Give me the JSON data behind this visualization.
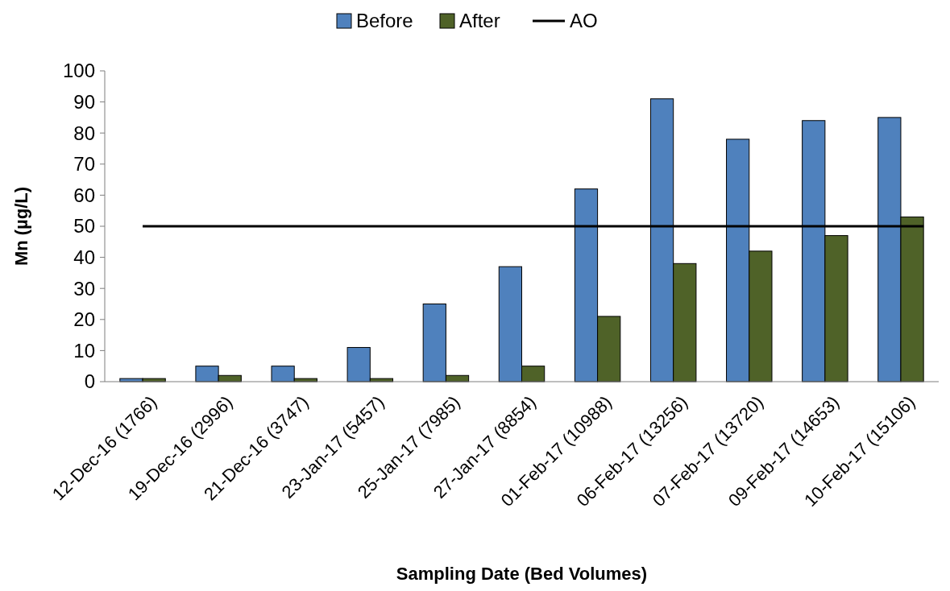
{
  "chart_data": {
    "type": "bar",
    "xlabel": "Sampling Date (Bed Volumes)",
    "ylabel": "Mn (µg/L)",
    "categories": [
      "12-Dec-16 (1766)",
      "19-Dec-16 (2996)",
      "21-Dec-16 (3747)",
      "23-Jan-17 (5457)",
      "25-Jan-17 (7985)",
      "27-Jan-17 (8854)",
      "01-Feb-17 (10988)",
      "06-Feb-17 (13256)",
      "07-Feb-17 (13720)",
      "09-Feb-17 (14653)",
      "10-Feb-17 (15106)"
    ],
    "series": [
      {
        "name": "Before",
        "color": "#4f81bd",
        "values": [
          1,
          5,
          5,
          11,
          25,
          37,
          62,
          91,
          78,
          84,
          85
        ]
      },
      {
        "name": "After",
        "color": "#4f6228",
        "values": [
          1,
          2,
          1,
          1,
          2,
          5,
          21,
          38,
          42,
          47,
          53
        ]
      }
    ],
    "ref_lines": [
      {
        "axis": "y",
        "value": 50,
        "label": "AO",
        "color": "#000000"
      }
    ],
    "ylim": [
      0,
      100
    ],
    "yticks": [
      0,
      10,
      20,
      30,
      40,
      50,
      60,
      70,
      80,
      90,
      100
    ],
    "grid": false,
    "legend": "top"
  }
}
